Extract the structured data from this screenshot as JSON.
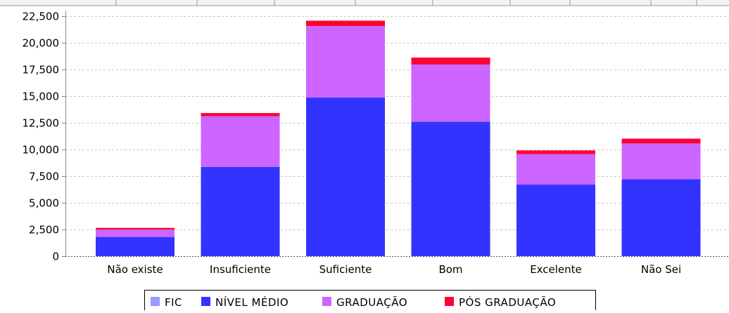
{
  "chart_data": {
    "type": "bar",
    "stacked": true,
    "title": "",
    "xlabel": "",
    "ylabel": "",
    "categories": [
      "Não existe",
      "Insuficiente",
      "Suficiente",
      "Bom",
      "Excelente",
      "Não Sei"
    ],
    "series": [
      {
        "name": "FIC",
        "color": "#9999ff",
        "values": [
          0,
          0,
          0,
          0,
          0,
          0
        ]
      },
      {
        "name": "NÍVEL MÉDIO",
        "color": "#3333ff",
        "values": [
          1800,
          8350,
          14850,
          12600,
          6700,
          7200
        ]
      },
      {
        "name": "GRADUAÇÃO",
        "color": "#cc66ff",
        "values": [
          700,
          4750,
          6700,
          5350,
          2850,
          3350
        ]
      },
      {
        "name": "PÓS GRADUAÇÃO",
        "color": "#ff0033",
        "values": [
          150,
          300,
          500,
          650,
          350,
          450
        ]
      }
    ],
    "ylim": [
      0,
      23000
    ],
    "yticks": [
      0,
      2500,
      5000,
      7500,
      10000,
      12500,
      15000,
      17500,
      20000,
      22500
    ],
    "ytick_labels": [
      "0",
      "2,500",
      "5,000",
      "7,500",
      "10,000",
      "12,500",
      "15,000",
      "17,500",
      "20,000",
      "22,500"
    ],
    "grid": true,
    "legend_position": "bottom"
  },
  "colors": {
    "grid": "#c8c8c8",
    "axis": "#888888",
    "baseline": "#555555"
  }
}
